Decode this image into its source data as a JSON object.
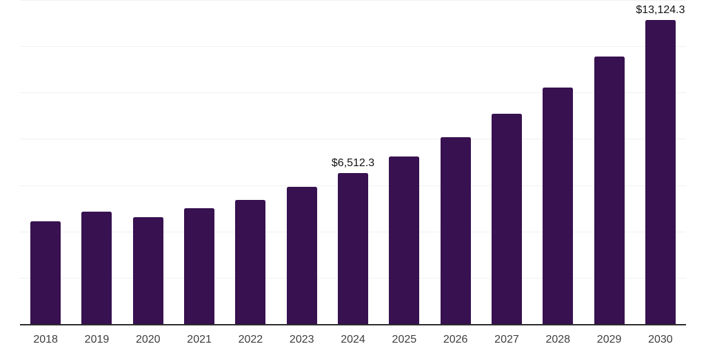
{
  "chart_data": {
    "type": "bar",
    "title": "",
    "xlabel": "",
    "ylabel": "",
    "categories": [
      "2018",
      "2019",
      "2020",
      "2021",
      "2022",
      "2023",
      "2024",
      "2025",
      "2026",
      "2027",
      "2028",
      "2029",
      "2030"
    ],
    "values": [
      4425,
      4845,
      4630,
      4990,
      5365,
      5915,
      6512.3,
      7225,
      8070,
      9085,
      10215,
      11570,
      13124.3
    ],
    "point_labels": {
      "2024": "$6,512.3",
      "2030": "$13,124.3"
    },
    "ylim": [
      0,
      14000
    ],
    "gridline_step": 2000,
    "grid": true,
    "legend": false,
    "colors": {
      "bar": "#371150",
      "axis_line": "#2b2b2b",
      "gridline": "#f0f0f0",
      "tick_label": "#3d3d3d",
      "value_label": "#111111",
      "background": "#ffffff"
    }
  }
}
